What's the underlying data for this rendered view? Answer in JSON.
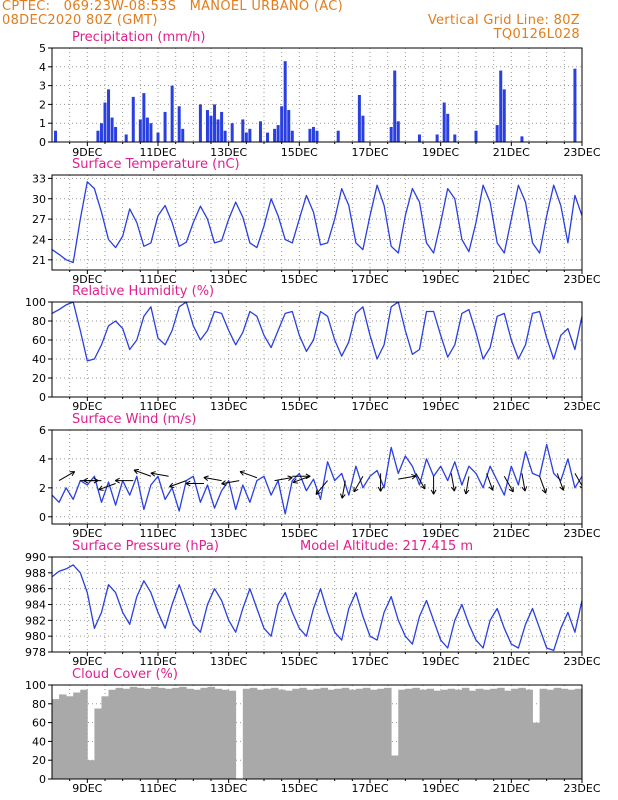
{
  "header": {
    "line1_left": "CPTEC:   069:23W-08:53S   MANOEL URBANO (AC)",
    "line2_left": "08DEC2020 80Z (GMT)",
    "line2_right": "Vertical Grid Line: 80Z",
    "line3_right": "TQ0126L028"
  },
  "colors": {
    "header": "#e07d1e",
    "title": "#e0208e",
    "series": "#2a3fe0",
    "bars": "#2a3fe0",
    "cloud": "#a9a9a9",
    "grid": "#9a9a9a"
  },
  "x_ticks": [
    "9DEC",
    "11DEC",
    "13DEC",
    "15DEC",
    "17DEC",
    "19DEC",
    "21DEC",
    "23DEC"
  ],
  "x_range_days": [
    8.0,
    23.0
  ],
  "chart_data": [
    {
      "type": "bar",
      "title": "Precipitation (mm/h)",
      "ylim": [
        0,
        5
      ],
      "yticks": [
        0,
        1,
        2,
        3,
        4,
        5
      ],
      "x": [
        8.1,
        9.3,
        9.4,
        9.5,
        9.6,
        9.7,
        9.8,
        10.1,
        10.3,
        10.5,
        10.6,
        10.7,
        10.8,
        11.0,
        11.2,
        11.4,
        11.6,
        11.7,
        12.2,
        12.4,
        12.5,
        12.6,
        12.7,
        12.8,
        12.9,
        13.1,
        13.4,
        13.5,
        13.6,
        13.9,
        14.1,
        14.3,
        14.4,
        14.5,
        14.6,
        14.7,
        14.8,
        15.3,
        15.4,
        15.5,
        16.1,
        16.7,
        16.8,
        17.6,
        17.7,
        17.8,
        18.4,
        18.9,
        19.1,
        19.2,
        19.4,
        20.0,
        20.6,
        20.7,
        20.8,
        21.3,
        22.8
      ],
      "values": [
        0.6,
        0.6,
        1.0,
        2.1,
        2.8,
        1.3,
        0.8,
        0.4,
        2.4,
        1.2,
        2.6,
        1.3,
        1.0,
        0.5,
        1.6,
        3.0,
        1.9,
        0.7,
        2.0,
        1.7,
        1.4,
        2.0,
        1.2,
        1.6,
        0.6,
        1.0,
        1.2,
        0.5,
        0.7,
        1.1,
        0.5,
        0.7,
        0.9,
        1.9,
        4.3,
        1.7,
        0.6,
        0.7,
        0.8,
        0.6,
        0.6,
        2.5,
        1.4,
        0.8,
        3.8,
        1.1,
        0.4,
        0.4,
        2.1,
        1.5,
        0.4,
        0.6,
        0.9,
        3.8,
        2.8,
        0.3,
        3.9
      ]
    },
    {
      "type": "line",
      "title": "Surface Temperature (nC)",
      "ylim": [
        19.5,
        33.5
      ],
      "yticks": [
        21,
        24,
        27,
        30,
        33
      ],
      "x": [
        8.0,
        8.2,
        8.4,
        8.6,
        8.8,
        9.0,
        9.2,
        9.4,
        9.6,
        9.8,
        10.0,
        10.2,
        10.4,
        10.6,
        10.8,
        11.0,
        11.2,
        11.4,
        11.6,
        11.8,
        12.0,
        12.2,
        12.4,
        12.6,
        12.8,
        13.0,
        13.2,
        13.4,
        13.6,
        13.8,
        14.0,
        14.2,
        14.4,
        14.6,
        14.8,
        15.0,
        15.2,
        15.4,
        15.6,
        15.8,
        16.0,
        16.2,
        16.4,
        16.6,
        16.8,
        17.0,
        17.2,
        17.4,
        17.6,
        17.8,
        18.0,
        18.2,
        18.4,
        18.6,
        18.8,
        19.0,
        19.2,
        19.4,
        19.6,
        19.8,
        20.0,
        20.2,
        20.4,
        20.6,
        20.8,
        21.0,
        21.2,
        21.4,
        21.6,
        21.8,
        22.0,
        22.2,
        22.4,
        22.6,
        22.8,
        23.0
      ],
      "values": [
        22.5,
        21.8,
        21.0,
        20.6,
        27.0,
        32.5,
        31.5,
        28.0,
        24.0,
        22.8,
        24.5,
        28.5,
        26.5,
        23.0,
        23.5,
        27.5,
        29.0,
        26.5,
        23.0,
        23.6,
        26.5,
        28.9,
        27.0,
        23.5,
        23.8,
        27.0,
        29.5,
        27.3,
        23.5,
        22.8,
        26.0,
        30.0,
        27.5,
        24.0,
        23.5,
        27.0,
        30.5,
        28.0,
        23.2,
        23.5,
        27.0,
        31.5,
        29.0,
        23.5,
        22.5,
        27.5,
        32.0,
        29.0,
        23.0,
        22.0,
        27.5,
        31.5,
        29.5,
        23.5,
        22.0,
        26.5,
        31.5,
        30.0,
        24.0,
        22.2,
        26.5,
        32.0,
        29.5,
        23.5,
        22.0,
        27.0,
        32.0,
        29.5,
        23.5,
        22.0,
        27.5,
        32.0,
        29.0,
        23.5,
        30.5,
        27.5
      ]
    },
    {
      "type": "line",
      "title": "Relative Humidity (%)",
      "ylim": [
        0,
        100
      ],
      "yticks": [
        0,
        20,
        40,
        60,
        80,
        100
      ],
      "x": [
        8.0,
        8.2,
        8.4,
        8.6,
        8.8,
        9.0,
        9.2,
        9.4,
        9.6,
        9.8,
        10.0,
        10.2,
        10.4,
        10.6,
        10.8,
        11.0,
        11.2,
        11.4,
        11.6,
        11.8,
        12.0,
        12.2,
        12.4,
        12.6,
        12.8,
        13.0,
        13.2,
        13.4,
        13.6,
        13.8,
        14.0,
        14.2,
        14.4,
        14.6,
        14.8,
        15.0,
        15.2,
        15.4,
        15.6,
        15.8,
        16.0,
        16.2,
        16.4,
        16.6,
        16.8,
        17.0,
        17.2,
        17.4,
        17.6,
        17.8,
        18.0,
        18.2,
        18.4,
        18.6,
        18.8,
        19.0,
        19.2,
        19.4,
        19.6,
        19.8,
        20.0,
        20.2,
        20.4,
        20.6,
        20.8,
        21.0,
        21.2,
        21.4,
        21.6,
        21.8,
        22.0,
        22.2,
        22.4,
        22.6,
        22.8,
        23.0
      ],
      "values": [
        88,
        92,
        97,
        100,
        70,
        38,
        40,
        55,
        75,
        80,
        72,
        50,
        60,
        85,
        95,
        62,
        55,
        70,
        95,
        100,
        75,
        60,
        70,
        90,
        88,
        70,
        55,
        68,
        90,
        85,
        65,
        52,
        70,
        88,
        90,
        65,
        48,
        60,
        90,
        85,
        60,
        43,
        58,
        88,
        95,
        65,
        40,
        55,
        95,
        100,
        70,
        45,
        50,
        90,
        90,
        65,
        42,
        55,
        88,
        92,
        68,
        40,
        52,
        85,
        88,
        60,
        40,
        55,
        88,
        90,
        62,
        40,
        65,
        72,
        50,
        85
      ]
    },
    {
      "type": "line",
      "title": "Surface Wind (m/s)",
      "ylim": [
        -0.5,
        6
      ],
      "yticks": [
        0,
        2,
        4,
        6
      ],
      "x": [
        8.0,
        8.2,
        8.4,
        8.6,
        8.8,
        9.0,
        9.2,
        9.4,
        9.6,
        9.8,
        10.0,
        10.2,
        10.4,
        10.6,
        10.8,
        11.0,
        11.2,
        11.4,
        11.6,
        11.8,
        12.0,
        12.2,
        12.4,
        12.6,
        12.8,
        13.0,
        13.2,
        13.4,
        13.6,
        13.8,
        14.0,
        14.2,
        14.4,
        14.6,
        14.8,
        15.0,
        15.2,
        15.4,
        15.6,
        15.8,
        16.0,
        16.2,
        16.4,
        16.6,
        16.8,
        17.0,
        17.2,
        17.4,
        17.6,
        17.8,
        18.0,
        18.2,
        18.4,
        18.6,
        18.8,
        19.0,
        19.2,
        19.4,
        19.6,
        19.8,
        20.0,
        20.2,
        20.4,
        20.6,
        20.8,
        21.0,
        21.2,
        21.4,
        21.6,
        21.8,
        22.0,
        22.2,
        22.4,
        22.6,
        22.8,
        23.0
      ],
      "values": [
        1.5,
        1.0,
        2.0,
        1.2,
        2.5,
        2.2,
        2.8,
        1.0,
        2.4,
        0.8,
        2.5,
        1.5,
        2.8,
        0.5,
        2.2,
        2.8,
        1.2,
        2.0,
        0.4,
        2.5,
        2.8,
        1.0,
        2.2,
        0.6,
        1.8,
        2.5,
        0.5,
        2.2,
        1.0,
        2.5,
        2.8,
        1.5,
        2.5,
        0.2,
        2.5,
        3.0,
        1.8,
        2.6,
        1.2,
        3.8,
        2.5,
        3.0,
        1.5,
        3.5,
        2.0,
        2.8,
        3.2,
        2.0,
        4.8,
        3.0,
        4.2,
        3.5,
        2.2,
        4.0,
        2.8,
        3.5,
        2.5,
        3.8,
        2.2,
        3.5,
        3.0,
        2.0,
        3.5,
        2.5,
        1.5,
        3.5,
        2.2,
        4.5,
        3.0,
        2.8,
        5.0,
        3.0,
        2.5,
        4.0,
        2.0,
        2.8
      ],
      "arrows_x": [
        8.2,
        8.8,
        9.4,
        9.8,
        10.3,
        10.8,
        11.3,
        11.8,
        12.3,
        12.8,
        13.3,
        13.8,
        14.3,
        14.8,
        15.3,
        15.8,
        16.3,
        16.8,
        17.3,
        17.8,
        18.3,
        18.8,
        19.3,
        19.8,
        20.3,
        20.8,
        21.3,
        21.8,
        22.3,
        22.8
      ],
      "arrows_dir_deg": [
        30,
        0,
        180,
        200,
        180,
        160,
        170,
        200,
        180,
        170,
        190,
        160,
        10,
        0,
        200,
        230,
        260,
        240,
        270,
        10,
        300,
        270,
        280,
        260,
        290,
        300,
        280,
        290,
        290,
        300
      ],
      "arrows_speed": [
        2.5,
        2.5,
        2.5,
        2.3,
        2.5,
        2.8,
        2.8,
        2.5,
        2.3,
        2.5,
        2.5,
        2.7,
        2.5,
        2.8,
        2.8,
        2.5,
        2.5,
        2.8,
        3.0,
        2.6,
        3.0,
        2.8,
        3.0,
        2.8,
        3.0,
        2.8,
        3.0,
        2.8,
        3.0,
        3.0
      ]
    },
    {
      "type": "line",
      "title": "Surface Pressure (hPa)",
      "subtitle": "Model Altitude: 217.415 m",
      "ylim": [
        978,
        990
      ],
      "yticks": [
        978,
        980,
        982,
        984,
        986,
        988,
        990
      ],
      "x": [
        8.0,
        8.2,
        8.4,
        8.6,
        8.8,
        9.0,
        9.2,
        9.4,
        9.6,
        9.8,
        10.0,
        10.2,
        10.4,
        10.6,
        10.8,
        11.0,
        11.2,
        11.4,
        11.6,
        11.8,
        12.0,
        12.2,
        12.4,
        12.6,
        12.8,
        13.0,
        13.2,
        13.4,
        13.6,
        13.8,
        14.0,
        14.2,
        14.4,
        14.6,
        14.8,
        15.0,
        15.2,
        15.4,
        15.6,
        15.8,
        16.0,
        16.2,
        16.4,
        16.6,
        16.8,
        17.0,
        17.2,
        17.4,
        17.6,
        17.8,
        18.0,
        18.2,
        18.4,
        18.6,
        18.8,
        19.0,
        19.2,
        19.4,
        19.6,
        19.8,
        20.0,
        20.2,
        20.4,
        20.6,
        20.8,
        21.0,
        21.2,
        21.4,
        21.6,
        21.8,
        22.0,
        22.2,
        22.4,
        22.6,
        22.8,
        23.0
      ],
      "values": [
        987.5,
        988.2,
        988.5,
        989.0,
        988.0,
        985.5,
        981.0,
        983.0,
        986.5,
        985.5,
        983.0,
        981.5,
        985.0,
        987.0,
        985.5,
        983.0,
        981.0,
        984.0,
        986.5,
        984.0,
        981.5,
        980.5,
        984.0,
        986.0,
        984.5,
        982.0,
        980.5,
        983.5,
        986.0,
        983.5,
        981.0,
        980.0,
        984.0,
        985.5,
        983.0,
        981.0,
        980.0,
        983.5,
        986.0,
        983.0,
        980.5,
        979.5,
        983.5,
        985.5,
        982.5,
        980.0,
        979.5,
        983.0,
        985.0,
        982.0,
        980.0,
        979.0,
        982.5,
        984.5,
        982.0,
        979.5,
        978.5,
        982.0,
        984.0,
        981.5,
        979.5,
        978.5,
        982.0,
        983.5,
        981.0,
        979.0,
        978.5,
        981.5,
        983.5,
        981.0,
        978.5,
        978.2,
        981.0,
        983.0,
        980.5,
        984.5
      ]
    },
    {
      "type": "area",
      "title": "Cloud Cover (%)",
      "ylim": [
        0,
        100
      ],
      "yticks": [
        0,
        20,
        40,
        60,
        80,
        100
      ],
      "x": [
        8.0,
        8.2,
        8.4,
        8.6,
        8.8,
        9.0,
        9.2,
        9.4,
        9.6,
        9.8,
        10.0,
        10.2,
        10.4,
        10.6,
        10.8,
        11.0,
        11.2,
        11.4,
        11.6,
        11.8,
        12.0,
        12.2,
        12.4,
        12.6,
        12.8,
        13.0,
        13.2,
        13.4,
        13.6,
        13.8,
        14.0,
        14.2,
        14.4,
        14.6,
        14.8,
        15.0,
        15.2,
        15.4,
        15.6,
        15.8,
        16.0,
        16.2,
        16.4,
        16.6,
        16.8,
        17.0,
        17.2,
        17.4,
        17.6,
        17.8,
        18.0,
        18.2,
        18.4,
        18.6,
        18.8,
        19.0,
        19.2,
        19.4,
        19.6,
        19.8,
        20.0,
        20.2,
        20.4,
        20.6,
        20.8,
        21.0,
        21.2,
        21.4,
        21.6,
        21.8,
        22.0,
        22.2,
        22.4,
        22.6,
        22.8,
        23.0
      ],
      "values": [
        85,
        90,
        88,
        92,
        95,
        20,
        75,
        88,
        95,
        97,
        96,
        98,
        97,
        96,
        98,
        97,
        96,
        97,
        98,
        96,
        95,
        97,
        98,
        96,
        95,
        94,
        0,
        96,
        97,
        95,
        96,
        97,
        95,
        94,
        96,
        97,
        95,
        96,
        97,
        95,
        96,
        97,
        95,
        96,
        97,
        95,
        96,
        97,
        25,
        95,
        96,
        97,
        95,
        96,
        94,
        95,
        96,
        95,
        97,
        94,
        96,
        95,
        96,
        97,
        94,
        96,
        97,
        95,
        60,
        96,
        95,
        97,
        96,
        95,
        96,
        94
      ]
    }
  ]
}
